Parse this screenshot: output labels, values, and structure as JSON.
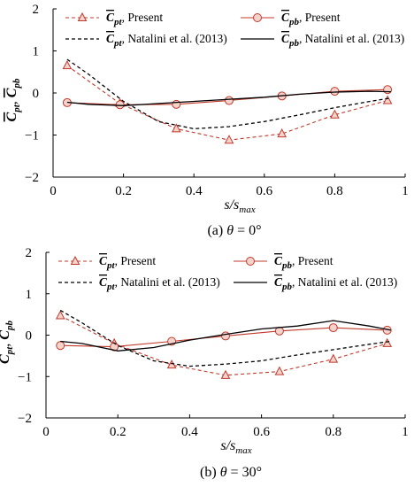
{
  "colors": {
    "present": "#c0392b",
    "reference": "#000000"
  },
  "legend_labels": {
    "cpt_present": "C̅pt, Present",
    "cpb_present": "C̅pb, Present",
    "cpt_natalini": "C̅pt, Natalini et al. (2013)",
    "cpb_natalini": "C̅pb, Natalini et al. (2013)"
  },
  "chart_data": [
    {
      "type": "line",
      "caption": "(a) θ = 0°",
      "xlabel": "s/smax",
      "ylabel": "C̅pt, C̅pb",
      "xlim": [
        0,
        1
      ],
      "ylim": [
        -2,
        2
      ],
      "xticks": [
        "0",
        "0.2",
        "0.4",
        "0.6",
        "0.8",
        "1"
      ],
      "yticks": [
        "2",
        "1",
        "0",
        "−1",
        "−2"
      ],
      "grid": false,
      "legend_position": "top",
      "series": [
        {
          "name": "C̅pt, Present",
          "style": "dashed-triangle",
          "color": "#c0392b",
          "x": [
            0.04,
            0.19,
            0.35,
            0.5,
            0.65,
            0.8,
            0.95
          ],
          "y": [
            0.65,
            -0.25,
            -0.85,
            -1.12,
            -0.97,
            -0.52,
            -0.18
          ]
        },
        {
          "name": "C̅pb, Present",
          "style": "solid-circle",
          "color": "#c0392b",
          "x": [
            0.04,
            0.19,
            0.35,
            0.5,
            0.65,
            0.8,
            0.95
          ],
          "y": [
            -0.23,
            -0.28,
            -0.27,
            -0.18,
            -0.07,
            0.04,
            0.08
          ]
        },
        {
          "name": "C̅pt, Natalini et al. (2013)",
          "style": "dashed",
          "color": "#000000",
          "x": [
            0.04,
            0.1,
            0.2,
            0.3,
            0.4,
            0.5,
            0.6,
            0.7,
            0.8,
            0.9,
            0.96
          ],
          "y": [
            0.8,
            0.45,
            -0.2,
            -0.68,
            -0.85,
            -0.8,
            -0.68,
            -0.52,
            -0.35,
            -0.2,
            -0.12
          ]
        },
        {
          "name": "C̅pb, Natalini et al. (2013)",
          "style": "solid",
          "color": "#000000",
          "x": [
            0.04,
            0.1,
            0.2,
            0.3,
            0.4,
            0.5,
            0.6,
            0.7,
            0.8,
            0.9,
            0.96
          ],
          "y": [
            -0.22,
            -0.27,
            -0.3,
            -0.25,
            -0.2,
            -0.15,
            -0.1,
            -0.03,
            0.02,
            0.04,
            0.03
          ]
        }
      ]
    },
    {
      "type": "line",
      "caption": "(b) θ = 30°",
      "xlabel": "s/smax",
      "ylabel": "C̅pt, C̅pb",
      "xlim": [
        0,
        1
      ],
      "ylim": [
        -2,
        2
      ],
      "xticks": [
        "0",
        "0.2",
        "0.4",
        "0.6",
        "0.8",
        "1"
      ],
      "yticks": [
        "2",
        "1",
        "0",
        "−1",
        "−2"
      ],
      "grid": false,
      "legend_position": "top",
      "series": [
        {
          "name": "C̅pt, Present",
          "style": "dashed-triangle",
          "color": "#c0392b",
          "x": [
            0.04,
            0.19,
            0.35,
            0.5,
            0.65,
            0.8,
            0.95
          ],
          "y": [
            0.47,
            -0.2,
            -0.72,
            -0.97,
            -0.88,
            -0.58,
            -0.2
          ]
        },
        {
          "name": "C̅pb, Present",
          "style": "solid-circle",
          "color": "#c0392b",
          "x": [
            0.04,
            0.19,
            0.35,
            0.5,
            0.65,
            0.8,
            0.95
          ],
          "y": [
            -0.25,
            -0.28,
            -0.15,
            -0.02,
            0.1,
            0.18,
            0.12
          ]
        },
        {
          "name": "C̅pt, Natalini et al. (2013)",
          "style": "dashed",
          "color": "#000000",
          "x": [
            0.04,
            0.1,
            0.2,
            0.3,
            0.4,
            0.5,
            0.6,
            0.7,
            0.8,
            0.9,
            0.96
          ],
          "y": [
            0.6,
            0.3,
            -0.25,
            -0.62,
            -0.75,
            -0.7,
            -0.62,
            -0.48,
            -0.35,
            -0.22,
            -0.15
          ]
        },
        {
          "name": "C̅pb, Natalini et al. (2013)",
          "style": "solid",
          "color": "#000000",
          "x": [
            0.04,
            0.1,
            0.2,
            0.3,
            0.4,
            0.5,
            0.6,
            0.7,
            0.8,
            0.9,
            0.96
          ],
          "y": [
            -0.15,
            -0.2,
            -0.38,
            -0.3,
            -0.12,
            0.02,
            0.15,
            0.22,
            0.35,
            0.22,
            0.12
          ]
        }
      ]
    }
  ]
}
